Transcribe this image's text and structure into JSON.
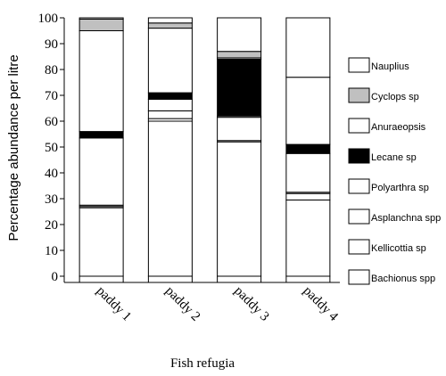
{
  "chart_data": {
    "type": "bar",
    "stacked": true,
    "categories": [
      "paddy 1",
      "paddy 2",
      "paddy 3",
      "paddy 4"
    ],
    "xlabel": "Fish refugia",
    "ylabel": "Percentage abundance per litre",
    "ylim": [
      0,
      100
    ],
    "yticks": [
      0,
      10,
      20,
      30,
      40,
      50,
      60,
      70,
      80,
      90,
      100
    ],
    "legend_position": "right",
    "series": [
      {
        "name": "Bachionus spp",
        "color": "#ffffff",
        "values": [
          26.5,
          60.0,
          52.0,
          29.5
        ]
      },
      {
        "name": "Kellicottia sp",
        "color": "#ffffff",
        "values": [
          0.5,
          1.0,
          0.5,
          2.5
        ]
      },
      {
        "name": "Asplanchna spp",
        "color": "#ffffff",
        "values": [
          0.5,
          3.0,
          9.0,
          0.5
        ]
      },
      {
        "name": "Polyarthra sp",
        "color": "#ffffff",
        "values": [
          26.0,
          4.5,
          0.5,
          15.0
        ]
      },
      {
        "name": "Lecane sp",
        "color": "#000000",
        "values": [
          2.5,
          2.5,
          22.0,
          3.5
        ]
      },
      {
        "name": "Anuraeopsis",
        "color": "#ffffff",
        "values": [
          39.0,
          25.0,
          0.5,
          26.0
        ]
      },
      {
        "name": "Cyclops sp",
        "color": "#c0c0c0",
        "values": [
          4.5,
          2.0,
          2.5,
          0.0
        ]
      },
      {
        "name": "Nauplius",
        "color": "#ffffff",
        "values": [
          0.5,
          2.0,
          13.0,
          23.0
        ]
      }
    ]
  }
}
